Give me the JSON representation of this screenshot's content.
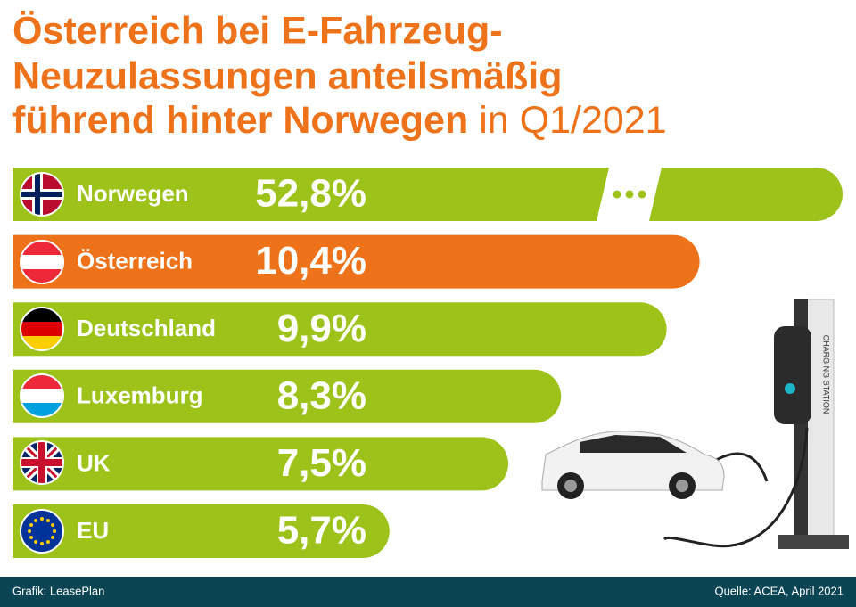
{
  "chart_data": {
    "type": "bar",
    "orientation": "horizontal",
    "title": [
      "Österreich bei E-Fahrzeug-",
      "Neuzulassungen anteilsmäßig",
      "führend hinter Norwegen"
    ],
    "subtitle": "in Q1/2021",
    "categories": [
      "Norwegen",
      "Österreich",
      "Deutschland",
      "Luxemburg",
      "UK",
      "EU"
    ],
    "values": [
      52.8,
      10.4,
      9.9,
      8.3,
      7.5,
      5.7
    ],
    "value_labels": [
      "52,8%",
      "10,4%",
      "9,9%",
      "8,3%",
      "7,5%",
      "5,7%"
    ],
    "colors": [
      "#9dc31b",
      "#ee7219",
      "#9dc31b",
      "#9dc31b",
      "#9dc31b",
      "#9dc31b"
    ],
    "footer_left": "Grafik: LeasePlan",
    "footer_right": "Quelle: ACEA, April 2021"
  }
}
